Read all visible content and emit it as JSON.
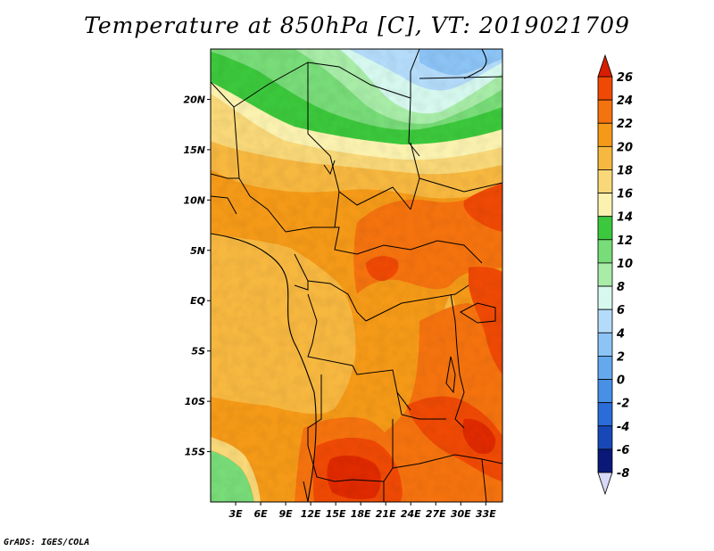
{
  "title": "Temperature at 850hPa [C], VT: 2019021709",
  "credit": "GrADS: IGES/COLA",
  "map": {
    "lat_labels": [
      "20N",
      "15N",
      "10N",
      "5N",
      "EQ",
      "5S",
      "10S",
      "15S"
    ],
    "lon_labels": [
      "3E",
      "6E",
      "9E",
      "12E",
      "15E",
      "18E",
      "21E",
      "24E",
      "27E",
      "30E",
      "33E"
    ]
  },
  "colorbar": {
    "levels": [
      26,
      24,
      22,
      20,
      18,
      16,
      14,
      12,
      10,
      8,
      6,
      4,
      2,
      0,
      -2,
      -4,
      -6,
      -8
    ],
    "labels": [
      "26",
      "24",
      "22",
      "20",
      "18",
      "16",
      "14",
      "12",
      "10",
      "8",
      "6",
      "4",
      "2",
      "0",
      "-2",
      "-4",
      "-6",
      "-8"
    ],
    "colors": [
      "#e02a00",
      "#ef4a05",
      "#f5730f",
      "#f59a18",
      "#f7b840",
      "#f8d878",
      "#fbf2b0",
      "#3cc83c",
      "#78dc78",
      "#a8eca8",
      "#d6f8ee",
      "#b4dcfa",
      "#8cc4f6",
      "#64a8ee",
      "#4690e6",
      "#2a6cd8",
      "#1848b8",
      "#0a1878"
    ],
    "over_color": "#d81e00",
    "under_color": "#d8d8f8"
  }
}
